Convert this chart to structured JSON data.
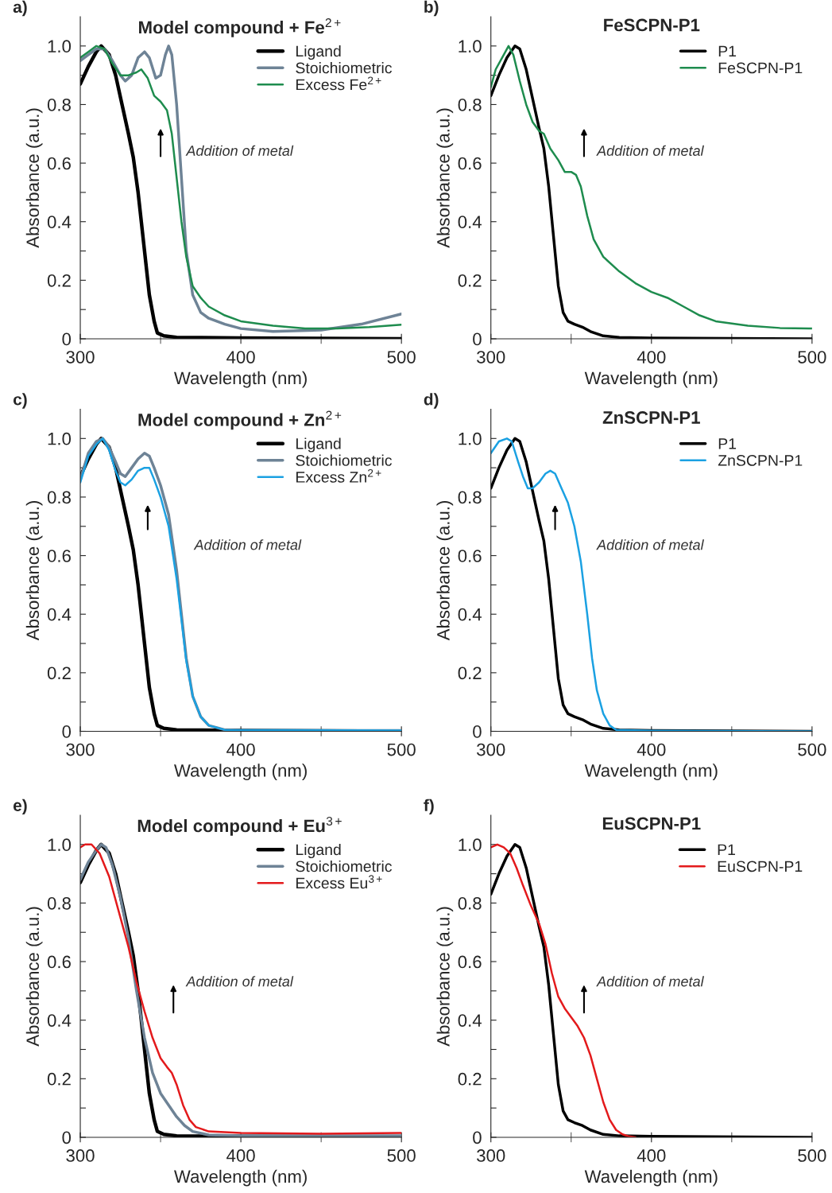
{
  "chart_data": [
    {
      "type": "line",
      "title": "Model compound + Fe$^{2+}$",
      "xlabel": "Wavelength (nm)",
      "ylabel": "Absorbance (a.u.)",
      "xlim": [
        300,
        500
      ],
      "ylim": [
        0,
        1.1
      ],
      "xticks": [
        300,
        400,
        500
      ],
      "yticks": [
        0,
        {
          "value": 0.1,
          "label": null
        },
        0.2,
        {
          "value": 0.3,
          "label": null
        },
        0.4,
        {
          "value": 0.5,
          "label": null
        },
        0.6,
        {
          "value": 0.7,
          "label": null
        },
        0.8,
        {
          "value": 0.9,
          "label": null
        },
        {
          "value": 1,
          "label": "1.0"
        }
      ],
      "grid": false,
      "legend": "top right",
      "line_style": "solid",
      "annotations": [
        "a)",
        "Addition of metal"
      ],
      "series": [
        {
          "name": "Ligand",
          "color": "#000000",
          "x": [
            300,
            305,
            310,
            313,
            318,
            322,
            326,
            330,
            333,
            336,
            340,
            343,
            346,
            348,
            352,
            360,
            400,
            500
          ],
          "values": [
            0.87,
            0.93,
            0.98,
            1.0,
            0.97,
            0.9,
            0.8,
            0.7,
            0.62,
            0.5,
            0.3,
            0.15,
            0.06,
            0.02,
            0.01,
            0.005,
            0.003,
            0.0
          ]
        },
        {
          "name": "Stoichiometric",
          "color": "#6e8396",
          "x": [
            300,
            305,
            310,
            315,
            320,
            325,
            328,
            332,
            336,
            340,
            343,
            347,
            350,
            353,
            355,
            357,
            360,
            363,
            366,
            370,
            375,
            380,
            390,
            400,
            420,
            450,
            475,
            500
          ],
          "values": [
            0.95,
            0.97,
            0.99,
            0.99,
            0.95,
            0.9,
            0.88,
            0.9,
            0.96,
            0.98,
            0.96,
            0.89,
            0.9,
            0.97,
            1.0,
            0.97,
            0.8,
            0.55,
            0.3,
            0.15,
            0.09,
            0.07,
            0.05,
            0.035,
            0.025,
            0.03,
            0.05,
            0.085
          ]
        },
        {
          "name": "Excess Fe$^{2+}$",
          "color": "#1e8c4e",
          "x": [
            300,
            305,
            310,
            315,
            320,
            325,
            330,
            335,
            338,
            342,
            346,
            350,
            354,
            357,
            360,
            363,
            366,
            370,
            375,
            380,
            390,
            400,
            420,
            440,
            460,
            480,
            500
          ],
          "values": [
            0.96,
            0.98,
            1.0,
            0.99,
            0.94,
            0.9,
            0.9,
            0.91,
            0.92,
            0.89,
            0.83,
            0.81,
            0.78,
            0.7,
            0.55,
            0.4,
            0.28,
            0.18,
            0.14,
            0.11,
            0.08,
            0.06,
            0.045,
            0.035,
            0.035,
            0.04,
            0.048
          ]
        }
      ]
    },
    {
      "type": "line",
      "title": "FeSCPN-P1",
      "xlabel": "Wavelength (nm)",
      "ylabel": "Absorbance (a.u.)",
      "xlim": [
        300,
        500
      ],
      "ylim": [
        0,
        1.1
      ],
      "xticks": [
        300,
        400,
        500
      ],
      "yticks": [
        0,
        {
          "value": 0.1,
          "label": null
        },
        0.2,
        {
          "value": 0.3,
          "label": null
        },
        0.4,
        {
          "value": 0.5,
          "label": null
        },
        0.6,
        {
          "value": 0.7,
          "label": null
        },
        0.8,
        {
          "value": 0.9,
          "label": null
        },
        {
          "value": 1,
          "label": "1.0"
        }
      ],
      "grid": false,
      "legend": "top right",
      "line_style": "solid",
      "annotations": [
        "b)",
        "Addition of metal"
      ],
      "series": [
        {
          "name": "P1",
          "color": "#000000",
          "x": [
            300,
            305,
            310,
            315,
            318,
            322,
            326,
            330,
            333,
            336,
            339,
            342,
            345,
            348,
            352,
            357,
            362,
            370,
            380,
            400,
            500
          ],
          "values": [
            0.83,
            0.9,
            0.96,
            1.0,
            0.99,
            0.92,
            0.82,
            0.72,
            0.65,
            0.52,
            0.35,
            0.18,
            0.09,
            0.06,
            0.05,
            0.04,
            0.025,
            0.01,
            0.005,
            0.003,
            0.0
          ]
        },
        {
          "name": "FeSCPN-P1",
          "color": "#1e8c4e",
          "x": [
            300,
            303,
            307,
            311,
            314,
            318,
            322,
            326,
            330,
            333,
            337,
            342,
            346,
            350,
            353,
            356,
            360,
            364,
            370,
            380,
            390,
            400,
            410,
            420,
            430,
            440,
            460,
            480,
            500
          ],
          "values": [
            0.86,
            0.92,
            0.96,
            1.0,
            0.97,
            0.88,
            0.8,
            0.74,
            0.71,
            0.7,
            0.65,
            0.61,
            0.57,
            0.57,
            0.56,
            0.52,
            0.42,
            0.34,
            0.28,
            0.23,
            0.19,
            0.16,
            0.14,
            0.11,
            0.08,
            0.06,
            0.045,
            0.037,
            0.035
          ]
        }
      ]
    },
    {
      "type": "line",
      "title": "Model compound + Zn$^{2+}$",
      "xlabel": "Wavelength (nm)",
      "ylabel": "Absorbance (a.u.)",
      "xlim": [
        300,
        500
      ],
      "ylim": [
        0,
        1.1
      ],
      "xticks": [
        300,
        400,
        500
      ],
      "yticks": [
        0,
        {
          "value": 0.1,
          "label": null
        },
        0.2,
        {
          "value": 0.3,
          "label": null
        },
        0.4,
        {
          "value": 0.5,
          "label": null
        },
        0.6,
        {
          "value": 0.7,
          "label": null
        },
        0.8,
        {
          "value": 0.9,
          "label": null
        },
        {
          "value": 1,
          "label": "1.0"
        }
      ],
      "grid": false,
      "legend": "top right",
      "line_style": "solid",
      "annotations": [
        "c)",
        "Addition of metal"
      ],
      "series": [
        {
          "name": "Ligand",
          "color": "#000000",
          "x": [
            300,
            305,
            310,
            313,
            318,
            322,
            326,
            330,
            333,
            336,
            340,
            343,
            346,
            348,
            352,
            360,
            400,
            500
          ],
          "values": [
            0.87,
            0.93,
            0.98,
            1.0,
            0.97,
            0.9,
            0.8,
            0.7,
            0.62,
            0.5,
            0.3,
            0.15,
            0.06,
            0.02,
            0.01,
            0.005,
            0.003,
            0.0
          ]
        },
        {
          "name": "Stoichiometric",
          "color": "#6e8396",
          "x": [
            300,
            305,
            310,
            314,
            318,
            322,
            325,
            328,
            332,
            336,
            340,
            343,
            346,
            350,
            355,
            360,
            363,
            366,
            370,
            375,
            380,
            390,
            400,
            500
          ],
          "values": [
            0.86,
            0.95,
            0.99,
            1.0,
            0.97,
            0.92,
            0.88,
            0.87,
            0.9,
            0.93,
            0.95,
            0.94,
            0.9,
            0.84,
            0.74,
            0.55,
            0.4,
            0.25,
            0.12,
            0.05,
            0.02,
            0.005,
            0.003,
            0.003
          ]
        },
        {
          "name": "Excess Zn$^{2+}$",
          "color": "#1ba1e2",
          "x": [
            300,
            305,
            310,
            314,
            318,
            322,
            325,
            328,
            332,
            336,
            340,
            343,
            346,
            350,
            355,
            360,
            363,
            366,
            370,
            375,
            380,
            390,
            500
          ],
          "values": [
            0.85,
            0.94,
            0.98,
            1.0,
            0.96,
            0.89,
            0.85,
            0.84,
            0.86,
            0.89,
            0.9,
            0.9,
            0.86,
            0.8,
            0.7,
            0.52,
            0.38,
            0.24,
            0.12,
            0.05,
            0.02,
            0.005,
            0.003
          ]
        }
      ]
    },
    {
      "type": "line",
      "title": "ZnSCPN-P1",
      "xlabel": "Wavelength (nm)",
      "ylabel": "Absorbance (a.u.)",
      "xlim": [
        300,
        500
      ],
      "ylim": [
        0,
        1.1
      ],
      "xticks": [
        300,
        400,
        500
      ],
      "yticks": [
        0,
        {
          "value": 0.1,
          "label": null
        },
        0.2,
        {
          "value": 0.3,
          "label": null
        },
        0.4,
        {
          "value": 0.5,
          "label": null
        },
        0.6,
        {
          "value": 0.7,
          "label": null
        },
        0.8,
        {
          "value": 0.9,
          "label": null
        },
        {
          "value": 1,
          "label": "1.0"
        }
      ],
      "grid": false,
      "legend": "top right",
      "line_style": "solid",
      "annotations": [
        "d)",
        "Addition of metal"
      ],
      "series": [
        {
          "name": "P1",
          "color": "#000000",
          "x": [
            300,
            305,
            310,
            315,
            318,
            322,
            326,
            330,
            333,
            336,
            339,
            342,
            345,
            348,
            352,
            357,
            362,
            370,
            380,
            400,
            500
          ],
          "values": [
            0.83,
            0.9,
            0.96,
            1.0,
            0.99,
            0.92,
            0.82,
            0.72,
            0.65,
            0.52,
            0.35,
            0.18,
            0.09,
            0.06,
            0.05,
            0.04,
            0.025,
            0.01,
            0.005,
            0.003,
            0.0
          ]
        },
        {
          "name": "ZnSCPN-P1",
          "color": "#1ba1e2",
          "x": [
            300,
            305,
            310,
            313,
            317,
            320,
            323,
            326,
            330,
            334,
            337,
            340,
            344,
            348,
            352,
            356,
            360,
            363,
            366,
            370,
            374,
            378,
            400,
            500
          ],
          "values": [
            0.95,
            0.99,
            1.0,
            0.99,
            0.92,
            0.87,
            0.83,
            0.83,
            0.85,
            0.88,
            0.89,
            0.88,
            0.83,
            0.78,
            0.7,
            0.58,
            0.4,
            0.25,
            0.14,
            0.06,
            0.02,
            0.005,
            0.002,
            0.0
          ]
        }
      ]
    },
    {
      "type": "line",
      "title": "Model compound + Eu$^{3+}$",
      "xlabel": "Wavelength (nm)",
      "ylabel": "Absorbance (a.u.)",
      "xlim": [
        300,
        500
      ],
      "ylim": [
        0,
        1.1
      ],
      "xticks": [
        300,
        400,
        500
      ],
      "yticks": [
        0,
        {
          "value": 0.1,
          "label": null
        },
        0.2,
        {
          "value": 0.3,
          "label": null
        },
        0.4,
        {
          "value": 0.5,
          "label": null
        },
        0.6,
        {
          "value": 0.7,
          "label": null
        },
        0.8,
        {
          "value": 0.9,
          "label": null
        },
        {
          "value": 1,
          "label": "1.0"
        }
      ],
      "grid": false,
      "legend": "top right",
      "line_style": "solid",
      "annotations": [
        "e)",
        "Addition of metal"
      ],
      "series": [
        {
          "name": "Ligand",
          "color": "#000000",
          "x": [
            300,
            305,
            310,
            313,
            318,
            322,
            326,
            330,
            333,
            336,
            340,
            343,
            346,
            348,
            352,
            360,
            400,
            500
          ],
          "values": [
            0.87,
            0.93,
            0.98,
            1.0,
            0.97,
            0.9,
            0.8,
            0.7,
            0.62,
            0.5,
            0.3,
            0.15,
            0.06,
            0.02,
            0.01,
            0.005,
            0.003,
            0.0
          ]
        },
        {
          "name": "Stoichiometric",
          "color": "#6e8396",
          "x": [
            300,
            305,
            310,
            313,
            316,
            320,
            325,
            330,
            335,
            340,
            345,
            350,
            355,
            360,
            365,
            370,
            380,
            400,
            500
          ],
          "values": [
            0.88,
            0.94,
            0.98,
            1.0,
            0.99,
            0.93,
            0.82,
            0.68,
            0.5,
            0.34,
            0.22,
            0.15,
            0.11,
            0.07,
            0.04,
            0.02,
            0.008,
            0.005,
            0.005
          ]
        },
        {
          "name": "Excess Eu$^{3+}$",
          "color": "#e31a1c",
          "x": [
            300,
            303,
            307,
            312,
            318,
            324,
            330,
            335,
            340,
            345,
            350,
            354,
            357,
            360,
            364,
            368,
            372,
            380,
            400,
            450,
            500
          ],
          "values": [
            0.99,
            1.0,
            1.0,
            0.97,
            0.89,
            0.77,
            0.65,
            0.53,
            0.43,
            0.34,
            0.27,
            0.24,
            0.22,
            0.18,
            0.11,
            0.06,
            0.035,
            0.02,
            0.015,
            0.012,
            0.015
          ]
        }
      ]
    },
    {
      "type": "line",
      "title": "EuSCPN-P1",
      "xlabel": "Wavelength (nm)",
      "ylabel": "Absorbance (a.u.)",
      "xlim": [
        300,
        500
      ],
      "ylim": [
        0,
        1.1
      ],
      "xticks": [
        300,
        400,
        500
      ],
      "yticks": [
        0,
        {
          "value": 0.1,
          "label": null
        },
        0.2,
        {
          "value": 0.3,
          "label": null
        },
        0.4,
        {
          "value": 0.5,
          "label": null
        },
        0.6,
        {
          "value": 0.7,
          "label": null
        },
        0.8,
        {
          "value": 0.9,
          "label": null
        },
        {
          "value": 1,
          "label": "1.0"
        }
      ],
      "grid": false,
      "legend": "top right",
      "line_style": "solid",
      "annotations": [
        "f)",
        "Addition of metal"
      ],
      "series": [
        {
          "name": "P1",
          "color": "#000000",
          "x": [
            300,
            305,
            310,
            315,
            318,
            322,
            326,
            330,
            333,
            336,
            339,
            342,
            345,
            348,
            352,
            357,
            362,
            370,
            380,
            400,
            500
          ],
          "values": [
            0.83,
            0.9,
            0.96,
            1.0,
            0.99,
            0.92,
            0.82,
            0.72,
            0.65,
            0.52,
            0.35,
            0.18,
            0.09,
            0.06,
            0.05,
            0.04,
            0.025,
            0.01,
            0.005,
            0.003,
            0.0
          ]
        },
        {
          "name": "EuSCPN-P1",
          "color": "#e31a1c",
          "x": [
            300,
            304,
            308,
            312,
            316,
            320,
            325,
            330,
            334,
            338,
            342,
            346,
            350,
            354,
            358,
            362,
            366,
            370,
            374,
            378,
            382,
            386,
            390
          ],
          "values": [
            0.99,
            1.0,
            0.99,
            0.97,
            0.92,
            0.86,
            0.79,
            0.73,
            0.66,
            0.56,
            0.48,
            0.44,
            0.41,
            0.38,
            0.34,
            0.28,
            0.2,
            0.12,
            0.06,
            0.025,
            0.01,
            0.003,
            0.0
          ]
        }
      ]
    }
  ]
}
